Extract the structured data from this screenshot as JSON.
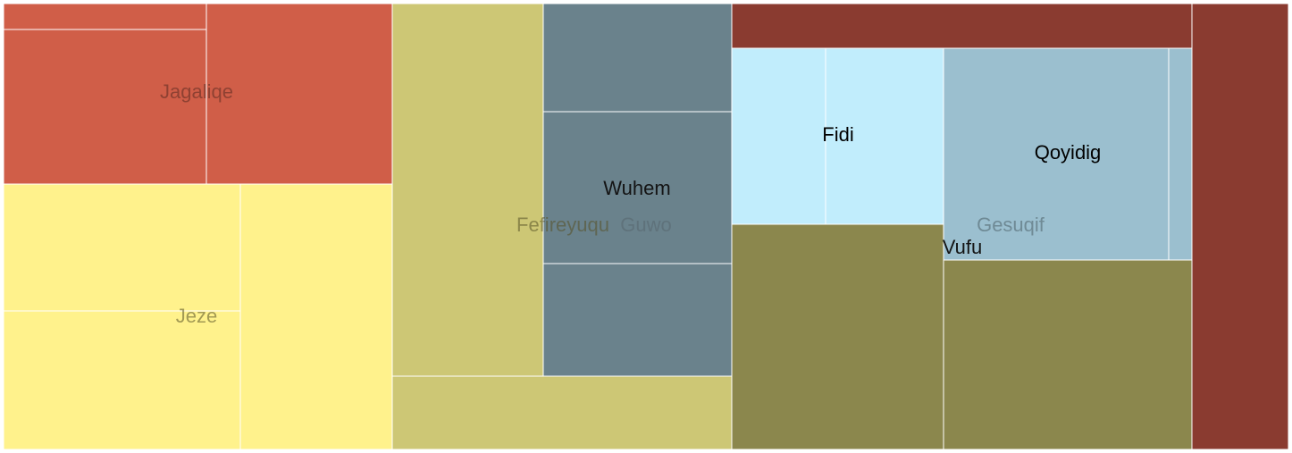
{
  "chart_data": {
    "type": "treemap",
    "title": "",
    "groups": [
      {
        "name": "Jagaliqe",
        "color": "#d05e48",
        "label_color": "#5a2a20",
        "children": [
          {
            "value": 3
          },
          {
            "value": 54
          },
          {
            "value": 61
          }
        ]
      },
      {
        "name": "Jeze",
        "color": "#fff28c",
        "label_color": "#555025",
        "children": [
          {
            "value": 53
          },
          {
            "value": 55
          },
          {
            "value": 70
          }
        ]
      },
      {
        "name": "Fefireyuqu",
        "color": "#cdc775",
        "label_color": "#555025",
        "children": [
          {
            "value": 98
          },
          {
            "value": 44
          }
        ]
      },
      {
        "name": "Guwo",
        "color": "#6a828c",
        "label_color": "#56666d",
        "children": [
          {
            "value": 35
          },
          {
            "name": "Wuhem",
            "value": 50
          },
          {
            "value": 35
          }
        ]
      },
      {
        "name": "Vufu",
        "color": "#8b874d",
        "label_color": "#141414",
        "children": [
          {
            "value": 98
          },
          {
            "value": 96
          }
        ]
      },
      {
        "name": "Gesuqif",
        "color": "#9bbfcf",
        "label_color": "#4a5e66",
        "children": [
          {
            "name": "Fidi",
            "value": 30
          },
          {
            "name": "Fidi",
            "value": 37
          },
          {
            "name": "Qoyidig",
            "value": 85
          },
          {
            "name": "Qoyidig",
            "value": 6
          }
        ]
      },
      {
        "name": "",
        "color": "#8a3b30",
        "label_color": "#ffffff",
        "children": [
          {
            "value": 39
          },
          {
            "value": 79
          }
        ]
      }
    ],
    "sub_colors": {
      "Fidi": "#c1edfc",
      "Qoyidig": "#9bbfcf"
    }
  }
}
